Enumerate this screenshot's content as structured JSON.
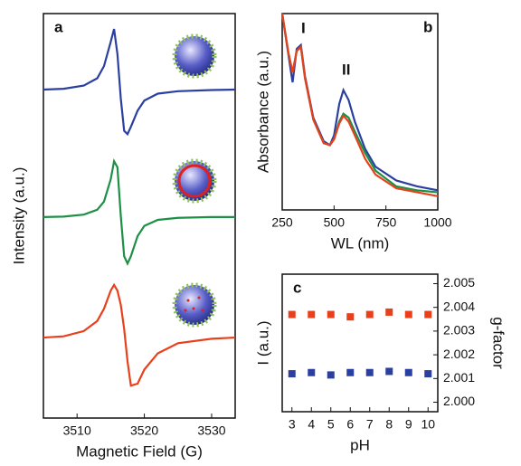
{
  "chart_data": [
    {
      "type": "line",
      "panel_label": "a",
      "x_label": "Magnetic Field (G)",
      "y_label": "Intensity (a.u.)",
      "xlim": [
        3505,
        3533.5
      ],
      "xticks": [
        3510,
        3520,
        3530
      ],
      "ylim": [
        0,
        100
      ],
      "x": [
        3505,
        3508,
        3511,
        3513,
        3514,
        3515,
        3515.5,
        3516,
        3516.5,
        3517,
        3517.5,
        3518,
        3519,
        3520,
        3522,
        3525,
        3530,
        3533.5
      ],
      "series": [
        {
          "color": "#2b3fa0",
          "values": [
            81.2,
            81.4,
            82.2,
            84,
            87,
            93,
            96.2,
            90,
            79,
            71,
            70.2,
            72,
            76,
            78.5,
            80.2,
            80.8,
            81.1,
            81.2
          ]
        },
        {
          "color": "#1e9046",
          "values": [
            49.7,
            49.8,
            50.3,
            51.5,
            53.5,
            59,
            63.5,
            62,
            50,
            40,
            38.2,
            40,
            45,
            47.5,
            49,
            49.5,
            49.7,
            49.7
          ]
        },
        {
          "color": "#e8401c",
          "values": [
            19.9,
            20.2,
            21.5,
            24,
            27,
            31.5,
            32.9,
            31.5,
            28,
            22,
            14,
            8,
            8.5,
            12,
            16,
            18.5,
            19.6,
            19.9
          ]
        }
      ]
    },
    {
      "type": "line",
      "panel_label": "b",
      "x_label": "WL (nm)",
      "y_label": "Absorbance (a.u.)",
      "annotations": [
        "I",
        "II"
      ],
      "xlim": [
        250,
        1000
      ],
      "xticks": [
        250,
        500,
        750,
        1000
      ],
      "ylim": [
        0,
        1
      ],
      "x": [
        250,
        280,
        300,
        320,
        340,
        360,
        400,
        450,
        480,
        500,
        525,
        545,
        570,
        600,
        650,
        700,
        800,
        900,
        1000
      ],
      "series": [
        {
          "color": "#2b3fa0",
          "values": [
            1.0,
            0.79,
            0.65,
            0.82,
            0.84,
            0.68,
            0.47,
            0.35,
            0.33,
            0.38,
            0.54,
            0.61,
            0.56,
            0.45,
            0.31,
            0.22,
            0.15,
            0.12,
            0.1
          ]
        },
        {
          "color": "#1e9046",
          "values": [
            1.0,
            0.8,
            0.7,
            0.81,
            0.83,
            0.67,
            0.46,
            0.34,
            0.33,
            0.36,
            0.45,
            0.49,
            0.47,
            0.4,
            0.29,
            0.2,
            0.12,
            0.1,
            0.09
          ]
        },
        {
          "color": "#e8401c",
          "values": [
            1.0,
            0.8,
            0.7,
            0.81,
            0.83,
            0.67,
            0.46,
            0.34,
            0.33,
            0.36,
            0.44,
            0.48,
            0.45,
            0.38,
            0.26,
            0.18,
            0.11,
            0.09,
            0.07
          ]
        }
      ]
    },
    {
      "type": "scatter",
      "panel_label": "c",
      "x_label": "pH",
      "y_label": "I (a.u.)",
      "y2_label": "g-factor",
      "y2_label_color": "#e8401c",
      "xlim": [
        2.5,
        10.5
      ],
      "xticks": [
        3,
        4,
        5,
        6,
        7,
        8,
        9,
        10
      ],
      "ylim": [
        0,
        5.8
      ],
      "y2lim": [
        1.9996,
        2.0054
      ],
      "y2ticks": [
        {
          "value": 2.0,
          "label": "2.000"
        },
        {
          "value": 2.001,
          "label": "2.001"
        },
        {
          "value": 2.002,
          "label": "2.002"
        },
        {
          "value": 2.003,
          "label": "2.003"
        },
        {
          "value": 2.004,
          "label": "2.004"
        },
        {
          "value": 2.005,
          "label": "2.005"
        }
      ],
      "x": [
        3,
        4,
        5,
        6,
        7,
        8,
        9,
        10
      ],
      "series": [
        {
          "color": "#2b3fa0",
          "values": [
            1.6,
            1.65,
            1.55,
            1.65,
            1.65,
            1.7,
            1.65,
            1.6
          ]
        },
        {
          "color": "#e8401c",
          "axis": "y2",
          "values": [
            2.0037,
            2.0037,
            2.0037,
            2.0036,
            2.0037,
            2.0038,
            2.0037,
            2.0037
          ]
        }
      ]
    }
  ]
}
